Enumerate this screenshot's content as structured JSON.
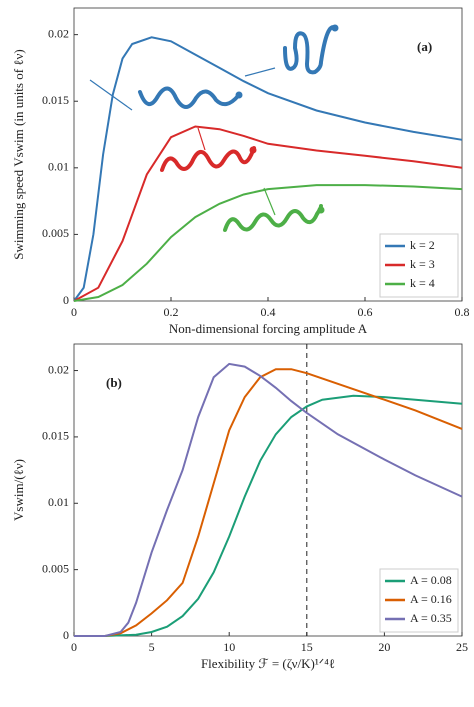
{
  "chart_data": [
    {
      "type": "line",
      "annotation": "(a)",
      "xlabel": "Non-dimensional forcing amplitude A",
      "ylabel": "Swimming speed Vswim (in units of ℓν)",
      "xlim": [
        0,
        0.8
      ],
      "ylim": [
        0,
        0.022
      ],
      "xticks": [
        0,
        0.2,
        0.4,
        0.6,
        0.8
      ],
      "yticks": [
        0,
        0.005,
        0.01,
        0.015,
        0.02
      ],
      "legend": "lower right",
      "series": [
        {
          "name": "k = 2",
          "color": "#3478b5",
          "x": [
            0,
            0.02,
            0.04,
            0.06,
            0.08,
            0.1,
            0.12,
            0.16,
            0.2,
            0.25,
            0.3,
            0.35,
            0.4,
            0.5,
            0.6,
            0.7,
            0.8
          ],
          "values": [
            0,
            0.001,
            0.005,
            0.011,
            0.0155,
            0.0182,
            0.0193,
            0.0198,
            0.0195,
            0.0185,
            0.0175,
            0.0165,
            0.0156,
            0.0143,
            0.0134,
            0.0127,
            0.0121
          ]
        },
        {
          "name": "k = 3",
          "color": "#d82a2a",
          "x": [
            0,
            0.05,
            0.1,
            0.15,
            0.2,
            0.25,
            0.3,
            0.35,
            0.4,
            0.5,
            0.6,
            0.7,
            0.8
          ],
          "values": [
            0,
            0.001,
            0.0045,
            0.0095,
            0.0123,
            0.0131,
            0.0129,
            0.0124,
            0.0118,
            0.0113,
            0.0109,
            0.0105,
            0.01
          ]
        },
        {
          "name": "k = 4",
          "color": "#4daf47",
          "x": [
            0,
            0.05,
            0.1,
            0.15,
            0.2,
            0.25,
            0.3,
            0.35,
            0.4,
            0.5,
            0.6,
            0.7,
            0.8
          ],
          "values": [
            0,
            0.0003,
            0.0012,
            0.0028,
            0.0048,
            0.0063,
            0.0073,
            0.008,
            0.0084,
            0.0087,
            0.0087,
            0.0086,
            0.0084
          ]
        }
      ]
    },
    {
      "type": "line",
      "annotation": "(b)",
      "xlabel": "Flexibility ℱ = (ζν/K)¹ᐟ⁴ℓ",
      "ylabel": "Vswim/(ℓν)",
      "xlim": [
        0,
        25
      ],
      "ylim": [
        0,
        0.022
      ],
      "xticks": [
        0,
        5,
        10,
        15,
        20,
        25
      ],
      "yticks": [
        0,
        0.005,
        0.01,
        0.015,
        0.02
      ],
      "vline": 15,
      "legend": "lower right",
      "series": [
        {
          "name": "A = 0.08",
          "color": "#1b9e77",
          "x": [
            0,
            2,
            4,
            5,
            6,
            7,
            8,
            9,
            10,
            11,
            12,
            13,
            14,
            15,
            16,
            18,
            20,
            22,
            25
          ],
          "values": [
            0,
            0,
            0.0001,
            0.0003,
            0.0007,
            0.0015,
            0.0028,
            0.0048,
            0.0075,
            0.0105,
            0.0132,
            0.0152,
            0.0165,
            0.0173,
            0.0178,
            0.0181,
            0.018,
            0.0178,
            0.0175
          ]
        },
        {
          "name": "A = 0.16",
          "color": "#d95f02",
          "x": [
            0,
            2,
            3,
            4,
            5,
            6,
            7,
            8,
            9,
            10,
            11,
            12,
            13,
            14,
            15,
            17,
            20,
            22,
            25
          ],
          "values": [
            0,
            0,
            0.0002,
            0.0008,
            0.0017,
            0.0027,
            0.004,
            0.0075,
            0.0115,
            0.0155,
            0.018,
            0.0195,
            0.0201,
            0.0201,
            0.0198,
            0.019,
            0.0178,
            0.017,
            0.0156
          ]
        },
        {
          "name": "A = 0.35",
          "color": "#7570b3",
          "x": [
            0,
            2,
            3,
            3.5,
            4,
            5,
            6,
            7,
            8,
            9,
            10,
            11,
            12,
            13,
            14,
            15,
            17,
            20,
            22,
            25
          ],
          "values": [
            0,
            0,
            0.0003,
            0.001,
            0.0025,
            0.0063,
            0.0095,
            0.0125,
            0.0165,
            0.0195,
            0.0205,
            0.0203,
            0.0196,
            0.0187,
            0.0177,
            0.0168,
            0.0152,
            0.0133,
            0.0121,
            0.0105
          ]
        }
      ]
    }
  ]
}
